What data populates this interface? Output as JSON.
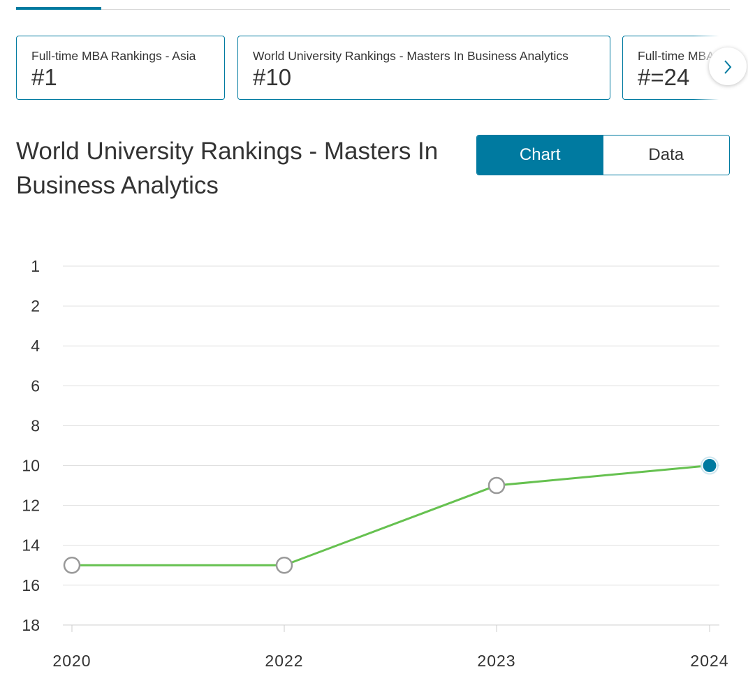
{
  "cards": [
    {
      "title": "Full-time MBA Rankings - Asia",
      "rank": "#1"
    },
    {
      "title": "World University Rankings - Masters In Business Analytics",
      "rank": "#10"
    },
    {
      "title": "Full-time MBA",
      "rank": "#=24"
    }
  ],
  "chart_title": "World University Rankings - Masters In Business Analytics",
  "toggle": {
    "chart_label": "Chart",
    "data_label": "Data",
    "active": "Chart"
  },
  "colors": {
    "accent": "#007aa0",
    "line": "#66c150",
    "marker_border": "#999999",
    "grid": "#e0e0e0"
  },
  "chart_data": {
    "type": "line",
    "title": "",
    "xlabel": "",
    "ylabel": "",
    "y_inverted": true,
    "x": [
      "2020",
      "2022",
      "2023",
      "2024"
    ],
    "values": [
      15,
      15,
      11,
      10
    ],
    "yticks": [
      "1",
      "2",
      "4",
      "6",
      "8",
      "10",
      "12",
      "14",
      "16",
      "18"
    ],
    "highlighted_point": "2024",
    "grid": true
  }
}
